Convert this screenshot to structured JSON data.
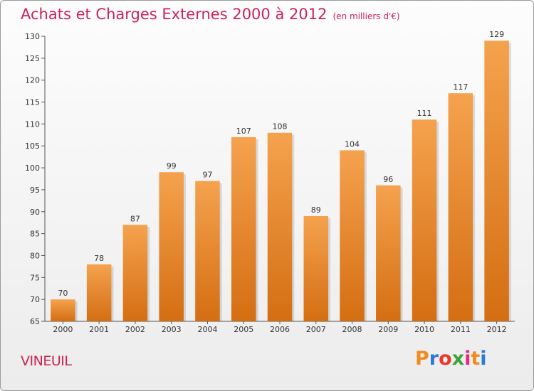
{
  "header": {
    "title": "Achats et Charges Externes 2000 à 2012",
    "unit": "(en milliers d'€)"
  },
  "footer": {
    "place": "VINEUIL",
    "logo_letters": [
      "P",
      "r",
      "o",
      "x",
      "i",
      "t",
      "i"
    ],
    "logo_colors": [
      "#f08c1e",
      "#2a7bd6",
      "#e83a2c",
      "#3aa43a",
      "#e02b7e",
      "#f08c1e",
      "#2a7bd6"
    ]
  },
  "chart_data": {
    "type": "bar",
    "title": "Achats et Charges Externes 2000 à 2012",
    "subtitle": "(en milliers d'€)",
    "categories": [
      "2000",
      "2001",
      "2002",
      "2003",
      "2004",
      "2005",
      "2006",
      "2007",
      "2008",
      "2009",
      "2010",
      "2011",
      "2012"
    ],
    "values": [
      70,
      78,
      87,
      99,
      97,
      107,
      108,
      89,
      104,
      96,
      111,
      117,
      129
    ],
    "ylim": [
      65,
      130
    ],
    "yticks": [
      65,
      70,
      75,
      80,
      85,
      90,
      95,
      100,
      105,
      110,
      115,
      120,
      125,
      130
    ],
    "xlabel": "",
    "ylabel": "",
    "bar_color_top": "#f5a24e",
    "bar_color_bottom": "#d46e12",
    "grid": false
  }
}
